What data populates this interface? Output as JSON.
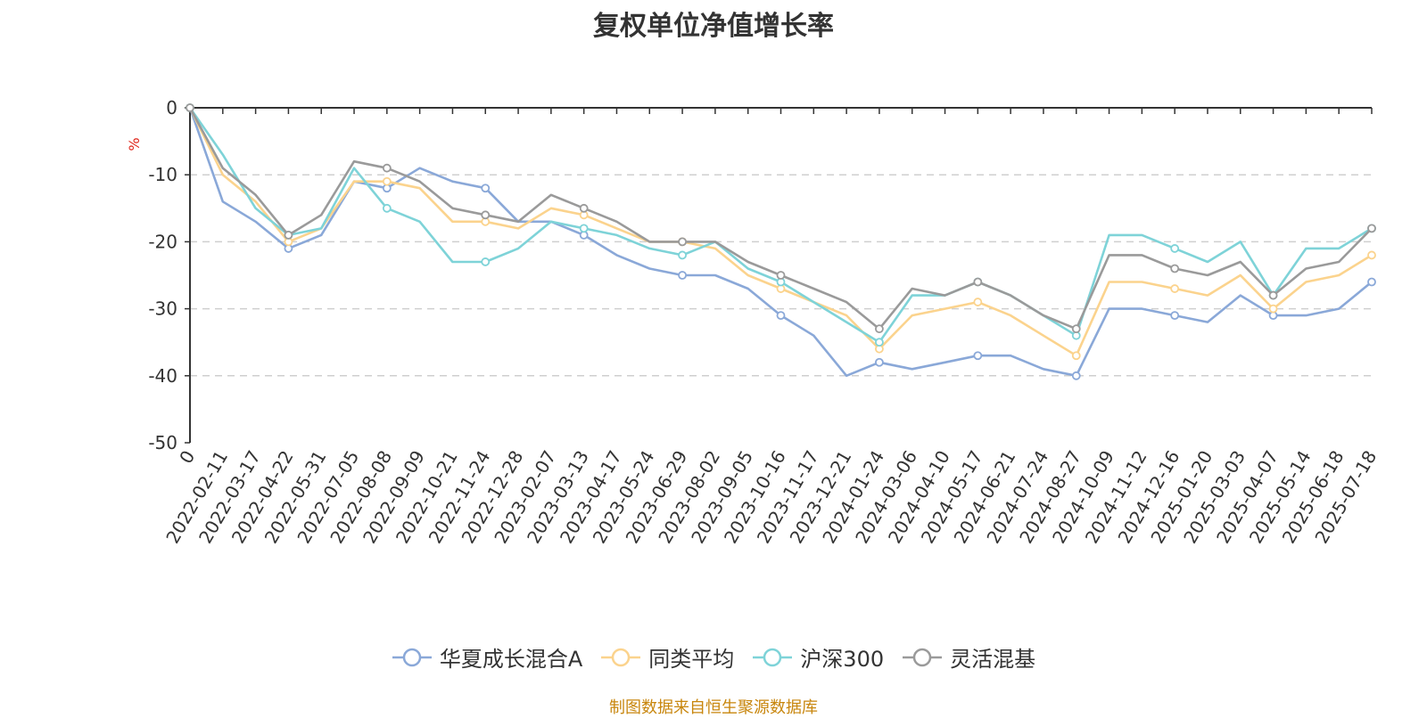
{
  "title": "复权单位净值增长率",
  "source_note": "制图数据来自恒生聚源数据库",
  "chart_data": {
    "type": "line",
    "title": "复权单位净值增长率",
    "ylabel": "%",
    "ylim": [
      -50,
      0
    ],
    "y_ticks": [
      0,
      -10,
      -20,
      -30,
      -40,
      -50
    ],
    "grid": true,
    "legend_position": "bottom",
    "x_tick_labels": [
      "0",
      "2022-02-11",
      "2022-03-17",
      "2022-04-22",
      "2022-05-31",
      "2022-07-05",
      "2022-08-08",
      "2022-09-09",
      "2022-10-21",
      "2022-11-24",
      "2022-12-28",
      "2023-02-07",
      "2023-03-13",
      "2023-04-17",
      "2023-05-24",
      "2023-06-29",
      "2023-08-02",
      "2023-09-05",
      "2023-10-16",
      "2023-11-17",
      "2023-12-21",
      "2024-01-24",
      "2024-03-06",
      "2024-04-10",
      "2024-05-17",
      "2024-06-21",
      "2024-07-24",
      "2024-08-27",
      "2024-10-09",
      "2024-11-12",
      "2024-12-16",
      "2025-01-20",
      "2025-03-03",
      "2025-04-07",
      "2025-05-14",
      "2025-06-18",
      "2025-07-18"
    ],
    "series": [
      {
        "name": "华夏成长混合A",
        "color": "#8aa8d8",
        "values": [
          0,
          -14,
          -17,
          -21,
          -19,
          -11,
          -12,
          -9,
          -11,
          -12,
          -17,
          -17,
          -19,
          -22,
          -24,
          -25,
          -25,
          -27,
          -31,
          -34,
          -40,
          -38,
          -39,
          -38,
          -37,
          -37,
          -39,
          -40,
          -30,
          -30,
          -31,
          -32,
          -28,
          -31,
          -31,
          -30,
          -26
        ]
      },
      {
        "name": "同类平均",
        "color": "#fbd38d",
        "values": [
          0,
          -10,
          -14,
          -20,
          -18,
          -11,
          -11,
          -12,
          -17,
          -17,
          -18,
          -15,
          -16,
          -18,
          -20,
          -20,
          -21,
          -25,
          -27,
          -29,
          -31,
          -36,
          -31,
          -30,
          -29,
          -31,
          -34,
          -37,
          -26,
          -26,
          -27,
          -28,
          -25,
          -30,
          -26,
          -25,
          -22
        ]
      },
      {
        "name": "沪深300",
        "color": "#7ed3d8",
        "values": [
          0,
          -7,
          -15,
          -19,
          -18,
          -9,
          -15,
          -17,
          -23,
          -23,
          -21,
          -17,
          -18,
          -19,
          -21,
          -22,
          -20,
          -24,
          -26,
          -29,
          -32,
          -35,
          -28,
          -28,
          -26,
          -28,
          -31,
          -34,
          -19,
          -19,
          -21,
          -23,
          -20,
          -28,
          -21,
          -21,
          -18
        ]
      },
      {
        "name": "灵活混基",
        "color": "#9a9a9a",
        "values": [
          0,
          -9,
          -13,
          -19,
          -16,
          -8,
          -9,
          -11,
          -15,
          -16,
          -17,
          -13,
          -15,
          -17,
          -20,
          -20,
          -20,
          -23,
          -25,
          -27,
          -29,
          -33,
          -27,
          -28,
          -26,
          -28,
          -31,
          -33,
          -22,
          -22,
          -24,
          -25,
          -23,
          -28,
          -24,
          -23,
          -18
        ]
      }
    ]
  }
}
